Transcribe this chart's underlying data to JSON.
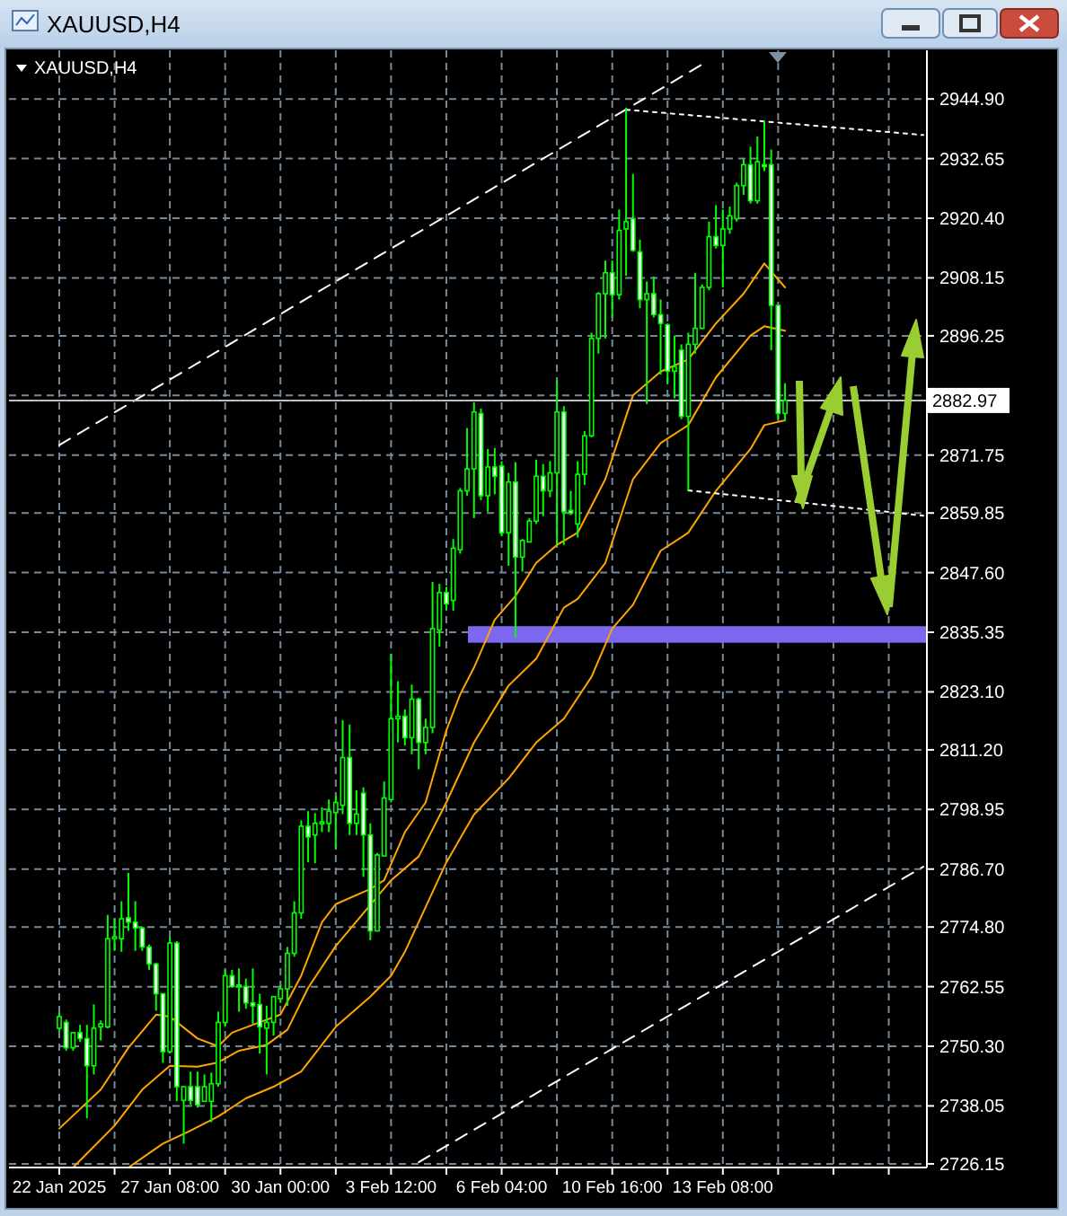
{
  "chart_data": {
    "type": "candlestick",
    "title": "XAUUSD,H4",
    "subtitle": "XAUUSD,H4",
    "color": "#00ff00",
    "categories": [
      "22 Jan 2025",
      null,
      null,
      null,
      null,
      null,
      null,
      null,
      null,
      null,
      null,
      null,
      null,
      null,
      null,
      null,
      "27 Jan 08:00",
      null,
      null,
      null,
      null,
      null,
      null,
      null,
      null,
      null,
      null,
      null,
      null,
      null,
      null,
      null,
      "30 Jan 00:00",
      null,
      null,
      null,
      null,
      null,
      null,
      null,
      null,
      null,
      null,
      null,
      null,
      null,
      null,
      null,
      "3 Feb 12:00",
      null,
      null,
      null,
      null,
      null,
      null,
      null,
      null,
      null,
      null,
      null,
      null,
      null,
      null,
      null,
      "6 Feb 04:00",
      null,
      null,
      null,
      null,
      null,
      null,
      null,
      null,
      null,
      null,
      null,
      null,
      null,
      null,
      null,
      "10 Feb 16:00",
      null,
      null,
      null,
      null,
      null,
      null,
      null,
      null,
      null,
      null,
      null,
      null,
      null,
      null,
      null,
      "13 Feb 08:00",
      null,
      null,
      null,
      null,
      null,
      null,
      null,
      null,
      null,
      null,
      null,
      null,
      null,
      null,
      null,
      null,
      null,
      null,
      null,
      null,
      null,
      null,
      null,
      null,
      null,
      null,
      null,
      null,
      null
    ],
    "ohlc": [
      [
        2754.0,
        2757.2,
        2753.5,
        2756.4
      ],
      [
        2755.2,
        2755.8,
        2749.4,
        2750.0
      ],
      [
        2750.0,
        2753.1,
        2749.4,
        2753.1
      ],
      [
        2753.1,
        2754.7,
        2751.2,
        2751.9
      ],
      [
        2751.9,
        2754.7,
        2735.5,
        2746.3
      ],
      [
        2746.3,
        2758.9,
        2744.5,
        2754.0
      ],
      [
        2754.3,
        2755.6,
        2751.5,
        2754.9
      ],
      [
        2754.3,
        2777.3,
        2754.0,
        2772.4
      ],
      [
        2772.4,
        2776.5,
        2769.9,
        2772.8
      ],
      [
        2772.4,
        2780.1,
        2769.7,
        2776.5
      ],
      [
        2776.7,
        2785.9,
        2774.0,
        2775.8
      ],
      [
        2775.8,
        2780.1,
        2769.9,
        2774.6
      ],
      [
        2774.6,
        2774.9,
        2769.9,
        2770.7
      ],
      [
        2770.7,
        2771.2,
        2766.0,
        2767.2
      ],
      [
        2767.2,
        2767.5,
        2757.6,
        2761.1
      ],
      [
        2761.1,
        2761.1,
        2746.9,
        2749.2
      ],
      [
        2749.2,
        2772.8,
        2748.8,
        2771.5
      ],
      [
        2771.5,
        2771.9,
        2739.0,
        2742.0
      ],
      [
        2739.2,
        2742.0,
        2730.3,
        2742.0
      ],
      [
        2742.0,
        2745.1,
        2738.3,
        2739.2
      ],
      [
        2742.0,
        2745.1,
        2737.7,
        2738.3
      ],
      [
        2739.0,
        2744.5,
        2739.0,
        2742.0
      ],
      [
        2739.0,
        2744.9,
        2734.7,
        2742.6
      ],
      [
        2742.6,
        2757.4,
        2742.0,
        2755.2
      ],
      [
        2755.2,
        2766.0,
        2754.3,
        2764.8
      ],
      [
        2764.8,
        2766.0,
        2762.3,
        2762.6
      ],
      [
        2762.6,
        2766.3,
        2757.4,
        2762.9
      ],
      [
        2762.6,
        2764.2,
        2758.0,
        2759.2
      ],
      [
        2759.2,
        2766.3,
        2754.9,
        2758.6
      ],
      [
        2758.9,
        2761.1,
        2748.8,
        2754.3
      ],
      [
        2754.0,
        2758.6,
        2744.5,
        2755.2
      ],
      [
        2755.2,
        2760.5,
        2752.5,
        2760.5
      ],
      [
        2760.1,
        2762.9,
        2759.2,
        2762.1
      ],
      [
        2762.1,
        2770.7,
        2758.6,
        2769.4
      ],
      [
        2769.4,
        2780.1,
        2768.7,
        2777.7
      ],
      [
        2777.7,
        2796.7,
        2776.5,
        2795.5
      ],
      [
        2795.5,
        2798.6,
        2788.1,
        2793.3
      ],
      [
        2793.7,
        2798.2,
        2787.9,
        2796.1
      ],
      [
        2796.0,
        2799.4,
        2794.3,
        2796.4
      ],
      [
        2796.1,
        2801.0,
        2794.3,
        2798.6
      ],
      [
        2798.3,
        2801.7,
        2790.8,
        2800.4
      ],
      [
        2799.8,
        2817.3,
        2798.0,
        2809.6
      ],
      [
        2809.6,
        2816.4,
        2793.7,
        2796.1
      ],
      [
        2796.1,
        2802.9,
        2793.7,
        2798.0
      ],
      [
        2802.3,
        2803.5,
        2785.1,
        2793.7
      ],
      [
        2793.7,
        2796.1,
        2772.1,
        2774.0
      ],
      [
        2774.0,
        2790.0,
        2774.0,
        2789.6
      ],
      [
        2789.4,
        2804.7,
        2789.4,
        2801.3
      ],
      [
        2801.0,
        2830.9,
        2800.4,
        2817.6
      ],
      [
        2817.6,
        2825.3,
        2812.7,
        2818.1
      ],
      [
        2818.1,
        2819.5,
        2812.1,
        2813.7
      ],
      [
        2813.7,
        2824.6,
        2810.3,
        2821.6
      ],
      [
        2821.6,
        2821.9,
        2807.2,
        2812.7
      ],
      [
        2812.7,
        2817.6,
        2810.3,
        2815.8
      ],
      [
        2815.8,
        2845.7,
        2814.6,
        2836.1
      ],
      [
        2835.8,
        2845.3,
        2832.4,
        2843.5
      ],
      [
        2843.5,
        2844.7,
        2840.0,
        2841.2
      ],
      [
        2841.9,
        2854.5,
        2839.8,
        2852.6
      ],
      [
        2852.3,
        2865.0,
        2851.5,
        2864.4
      ],
      [
        2864.4,
        2877.3,
        2863.4,
        2868.9
      ],
      [
        2868.9,
        2882.6,
        2858.8,
        2880.6
      ],
      [
        2880.3,
        2881.3,
        2862.5,
        2863.4
      ],
      [
        2863.4,
        2873.0,
        2860.1,
        2869.3
      ],
      [
        2869.3,
        2873.2,
        2863.7,
        2867.4
      ],
      [
        2869.5,
        2870.5,
        2855.1,
        2855.8
      ],
      [
        2855.8,
        2868.1,
        2849.0,
        2866.2
      ],
      [
        2866.2,
        2870.3,
        2834.2,
        2850.8
      ],
      [
        2850.8,
        2854.5,
        2847.8,
        2854.2
      ],
      [
        2853.9,
        2858.8,
        2853.9,
        2858.2
      ],
      [
        2858.2,
        2870.8,
        2857.6,
        2867.4
      ],
      [
        2867.4,
        2869.9,
        2859.2,
        2864.4
      ],
      [
        2864.4,
        2870.5,
        2863.1,
        2868.1
      ],
      [
        2868.1,
        2887.1,
        2853.3,
        2880.6
      ],
      [
        2880.6,
        2881.8,
        2853.3,
        2860.1
      ],
      [
        2860.4,
        2864.4,
        2859.4,
        2859.8
      ],
      [
        2857.6,
        2870.5,
        2854.8,
        2867.8
      ],
      [
        2867.8,
        2876.7,
        2865.6,
        2875.7
      ],
      [
        2875.7,
        2896.9,
        2875.4,
        2895.7
      ],
      [
        2895.7,
        2905.2,
        2892.6,
        2904.9
      ],
      [
        2904.9,
        2911.7,
        2895.7,
        2909.2
      ],
      [
        2909.2,
        2911.7,
        2900.0,
        2904.7
      ],
      [
        2904.7,
        2922.2,
        2903.7,
        2917.9
      ],
      [
        2918.2,
        2943.1,
        2908.6,
        2919.7
      ],
      [
        2920.3,
        2929.5,
        2913.5,
        2913.8
      ],
      [
        2913.5,
        2916.0,
        2901.9,
        2903.7
      ],
      [
        2903.7,
        2907.4,
        2882.2,
        2904.9
      ],
      [
        2904.9,
        2908.4,
        2900.0,
        2900.6
      ],
      [
        2900.6,
        2903.7,
        2888.3,
        2898.8
      ],
      [
        2898.5,
        2898.8,
        2886.5,
        2889.0
      ],
      [
        2889.0,
        2896.3,
        2883.4,
        2889.9
      ],
      [
        2893.3,
        2894.5,
        2879.1,
        2879.7
      ],
      [
        2879.7,
        2896.9,
        2864.4,
        2894.5
      ],
      [
        2894.5,
        2909.2,
        2892.6,
        2897.8
      ],
      [
        2897.8,
        2906.8,
        2897.6,
        2906.2
      ],
      [
        2906.2,
        2919.7,
        2905.6,
        2916.6
      ],
      [
        2916.6,
        2923.1,
        2914.2,
        2914.8
      ],
      [
        2914.8,
        2922.2,
        2906.2,
        2918.2
      ],
      [
        2918.2,
        2922.8,
        2917.2,
        2920.9
      ],
      [
        2920.3,
        2927.7,
        2919.7,
        2927.1
      ],
      [
        2927.1,
        2932.6,
        2925.2,
        2931.4
      ],
      [
        2931.4,
        2935.1,
        2923.4,
        2924.0
      ],
      [
        2924.0,
        2937.2,
        2923.4,
        2932.0
      ],
      [
        2931.4,
        2940.4,
        2930.1,
        2931.0
      ],
      [
        2931.4,
        2934.5,
        2893.3,
        2902.5
      ],
      [
        2902.5,
        2902.5,
        2879.1,
        2880.3
      ],
      [
        2880.3,
        2886.5,
        2878.7,
        2883.0
      ],
      null,
      null,
      null,
      null,
      null,
      null,
      null,
      null,
      null,
      null,
      null,
      null,
      null,
      null,
      null,
      null,
      null,
      null,
      null,
      null
    ],
    "series": [
      {
        "type": "line",
        "color": "#ffa500",
        "line_style": "solid",
        "values": [
          2733.4,
          null,
          null,
          null,
          null,
          null,
          2741.4,
          null,
          null,
          null,
          2750.0,
          null,
          null,
          null,
          2756.8,
          null,
          2756.4,
          null,
          null,
          null,
          2751.9,
          null,
          null,
          2750.3,
          null,
          2753.1,
          null,
          null,
          2754.7,
          null,
          null,
          null,
          2756.8,
          null,
          null,
          2764.8,
          null,
          null,
          2775.8,
          null,
          2779.5,
          null,
          null,
          null,
          null,
          2782.6,
          null,
          2784.4,
          null,
          null,
          2794.3,
          null,
          null,
          2800.4,
          null,
          null,
          2815.2,
          null,
          2822.6,
          null,
          2828.1,
          null,
          null,
          2837.9,
          null,
          null,
          2842.8,
          null,
          null,
          2849.6,
          null,
          null,
          2853.3,
          null,
          null,
          2855.8,
          null,
          null,
          null,
          2866.8,
          null,
          null,
          null,
          2884.0,
          null,
          null,
          null,
          2888.9,
          null,
          null,
          null,
          2891.4,
          null,
          null,
          null,
          2898.8,
          null,
          null,
          null,
          2904.9,
          null,
          null,
          2911.1,
          null,
          null,
          2906.2,
          null,
          null,
          null,
          null,
          null,
          null,
          null,
          null,
          null,
          null,
          null,
          null,
          null,
          null,
          null,
          null,
          null,
          null,
          null,
          null
        ]
      },
      {
        "type": "line",
        "color": "#ffa500",
        "line_style": "solid",
        "values": [
          null,
          null,
          2725.4,
          null,
          null,
          null,
          null,
          null,
          2734.0,
          null,
          null,
          null,
          2741.4,
          null,
          null,
          null,
          2746.3,
          null,
          null,
          null,
          2746.1,
          null,
          null,
          2747.0,
          null,
          null,
          2749.4,
          null,
          null,
          null,
          2750.6,
          null,
          null,
          2753.7,
          null,
          null,
          2762.3,
          null,
          null,
          null,
          2770.9,
          null,
          null,
          null,
          null,
          null,
          null,
          null,
          2784.4,
          null,
          null,
          null,
          2789.3,
          null,
          null,
          null,
          2800.4,
          null,
          null,
          null,
          2812.7,
          null,
          null,
          null,
          null,
          2824.4,
          null,
          null,
          null,
          2829.9,
          null,
          null,
          null,
          2840.4,
          null,
          2842.2,
          null,
          null,
          null,
          2849.6,
          null,
          null,
          null,
          2866.8,
          null,
          null,
          null,
          2874.2,
          null,
          null,
          null,
          2877.9,
          null,
          null,
          null,
          2887.7,
          null,
          null,
          null,
          null,
          2896.3,
          null,
          2898.2,
          null,
          null,
          2897.3,
          null,
          null,
          null,
          null,
          null,
          null,
          null,
          null,
          null,
          null,
          null,
          null,
          null,
          null,
          null,
          null,
          null,
          null,
          null,
          null
        ]
      },
      {
        "type": "line",
        "color": "#ffa500",
        "line_style": "solid",
        "values": [
          null,
          null,
          null,
          null,
          null,
          null,
          null,
          null,
          null,
          null,
          2725.4,
          null,
          null,
          null,
          null,
          2730.3,
          null,
          null,
          null,
          2733.0,
          null,
          null,
          null,
          2735.9,
          null,
          null,
          null,
          2739.6,
          null,
          null,
          null,
          2742.0,
          null,
          null,
          null,
          2745.1,
          null,
          null,
          null,
          null,
          2754.3,
          null,
          null,
          null,
          null,
          2760.5,
          null,
          null,
          2764.8,
          null,
          2769.7,
          null,
          null,
          null,
          null,
          null,
          2788.1,
          null,
          null,
          null,
          2797.9,
          null,
          null,
          null,
          null,
          2805.3,
          null,
          null,
          null,
          2812.7,
          null,
          null,
          null,
          2817.6,
          null,
          null,
          null,
          2826.2,
          null,
          null,
          2836.1,
          null,
          null,
          2841.0,
          null,
          null,
          null,
          2852.1,
          null,
          null,
          null,
          2855.8,
          null,
          null,
          null,
          2864.4,
          null,
          null,
          null,
          null,
          2873.0,
          null,
          2877.9,
          null,
          null,
          2878.9,
          null,
          null,
          null,
          null,
          null,
          null,
          null,
          null,
          null,
          null,
          null,
          null,
          null,
          null,
          null,
          null,
          null,
          null,
          null,
          null
        ]
      },
      {
        "type": "line",
        "color": "#ffffff",
        "line_style": "dashed",
        "values": [
          2873.8,
          null,
          null,
          null,
          null,
          null,
          null,
          null,
          null,
          null,
          null,
          null,
          null,
          null,
          null,
          null,
          null,
          null,
          null,
          null,
          null,
          null,
          null,
          null,
          null,
          null,
          null,
          null,
          null,
          null,
          null,
          null,
          null,
          null,
          null,
          null,
          null,
          null,
          null,
          null,
          null,
          null,
          null,
          null,
          null,
          null,
          null,
          null,
          null,
          null,
          null,
          null,
          null,
          null,
          null,
          null,
          null,
          null,
          null,
          null,
          null,
          null,
          null,
          null,
          null,
          null,
          null,
          null,
          null,
          null,
          null,
          null,
          null,
          null,
          null,
          null,
          null,
          null,
          null,
          null,
          null,
          null,
          null,
          null,
          null,
          null,
          null,
          null,
          null,
          null,
          null,
          null,
          null,
          2952.0,
          null,
          null,
          null,
          null,
          null,
          null,
          null,
          null,
          null,
          null,
          null,
          null,
          null,
          null,
          null,
          null,
          null,
          null,
          null,
          null,
          null,
          null,
          null,
          null,
          null,
          null,
          null,
          null,
          null,
          null,
          null,
          null
        ]
      },
      {
        "type": "line",
        "color": "#ffffff",
        "line_style": "dashed",
        "values": [
          null,
          null,
          null,
          null,
          null,
          null,
          null,
          null,
          null,
          null,
          null,
          null,
          null,
          null,
          null,
          null,
          null,
          null,
          null,
          null,
          null,
          null,
          null,
          null,
          null,
          null,
          null,
          null,
          null,
          null,
          null,
          null,
          null,
          null,
          null,
          null,
          null,
          null,
          null,
          null,
          null,
          null,
          null,
          null,
          null,
          null,
          null,
          null,
          null,
          null,
          null,
          null,
          2726.5,
          null,
          null,
          null,
          null,
          null,
          null,
          null,
          null,
          null,
          null,
          null,
          null,
          null,
          null,
          null,
          null,
          null,
          null,
          null,
          null,
          null,
          null,
          null,
          null,
          null,
          null,
          null,
          null,
          null,
          null,
          null,
          null,
          null,
          null,
          null,
          null,
          null,
          null,
          null,
          null,
          null,
          null,
          null,
          null,
          null,
          null,
          null,
          null,
          null,
          null,
          null,
          null,
          null,
          null,
          null,
          null,
          null,
          null,
          null,
          null,
          null,
          null,
          null,
          null,
          null,
          null,
          null,
          null,
          null,
          null,
          null,
          null,
          2787.2
        ]
      },
      {
        "type": "line",
        "color": "#ffffff",
        "line_style": "dotted",
        "values": [
          null,
          null,
          null,
          null,
          null,
          null,
          null,
          null,
          null,
          null,
          null,
          null,
          null,
          null,
          null,
          null,
          null,
          null,
          null,
          null,
          null,
          null,
          null,
          null,
          null,
          null,
          null,
          null,
          null,
          null,
          null,
          null,
          null,
          null,
          null,
          null,
          null,
          null,
          null,
          null,
          null,
          null,
          null,
          null,
          null,
          null,
          null,
          null,
          null,
          null,
          null,
          null,
          null,
          null,
          null,
          null,
          null,
          null,
          null,
          null,
          null,
          null,
          null,
          null,
          null,
          null,
          null,
          null,
          null,
          null,
          null,
          null,
          null,
          null,
          null,
          null,
          null,
          null,
          null,
          null,
          null,
          null,
          2942.7,
          null,
          null,
          null,
          null,
          null,
          null,
          null,
          null,
          null,
          null,
          null,
          null,
          null,
          null,
          null,
          null,
          null,
          null,
          null,
          null,
          null,
          null,
          null,
          null,
          null,
          null,
          null,
          null,
          null,
          null,
          null,
          null,
          null,
          null,
          null,
          null,
          null,
          null,
          null,
          null,
          null,
          null,
          2937.5
        ]
      },
      {
        "type": "line",
        "color": "#ffffff",
        "line_style": "dotted",
        "values": [
          null,
          null,
          null,
          null,
          null,
          null,
          null,
          null,
          null,
          null,
          null,
          null,
          null,
          null,
          null,
          null,
          null,
          null,
          null,
          null,
          null,
          null,
          null,
          null,
          null,
          null,
          null,
          null,
          null,
          null,
          null,
          null,
          null,
          null,
          null,
          null,
          null,
          null,
          null,
          null,
          null,
          null,
          null,
          null,
          null,
          null,
          null,
          null,
          null,
          null,
          null,
          null,
          null,
          null,
          null,
          null,
          null,
          null,
          null,
          null,
          null,
          null,
          null,
          null,
          null,
          null,
          null,
          null,
          null,
          null,
          null,
          null,
          null,
          null,
          null,
          null,
          null,
          null,
          null,
          null,
          null,
          null,
          null,
          null,
          null,
          null,
          null,
          null,
          null,
          null,
          null,
          2864.5,
          null,
          null,
          null,
          null,
          null,
          null,
          null,
          null,
          null,
          null,
          null,
          null,
          null,
          null,
          null,
          null,
          null,
          null,
          null,
          null,
          null,
          null,
          null,
          null,
          null,
          null,
          null,
          null,
          null,
          null,
          null,
          null,
          null,
          2859.3
        ]
      }
    ],
    "ylim": [
      2725.4,
      2954.9
    ],
    "yticks": [
      {
        "value": 2726.15,
        "label": "2726.15"
      },
      {
        "value": 2738.05,
        "label": "2738.05"
      },
      {
        "value": 2750.3,
        "label": "2750.30"
      },
      {
        "value": 2762.55,
        "label": "2762.55"
      },
      {
        "value": 2774.8,
        "label": "2774.80"
      },
      {
        "value": 2786.7,
        "label": "2786.70"
      },
      {
        "value": 2798.95,
        "label": "2798.95"
      },
      {
        "value": 2811.2,
        "label": "2811.20"
      },
      {
        "value": 2823.1,
        "label": "2823.10"
      },
      {
        "value": 2835.35,
        "label": "2835.35"
      },
      {
        "value": 2847.6,
        "label": "2847.60"
      },
      {
        "value": 2859.85,
        "label": "2859.85"
      },
      {
        "value": 2871.75,
        "label": "2871.75"
      },
      {
        "value": 2884.0,
        "label": null
      },
      {
        "value": 2896.25,
        "label": "2896.25"
      },
      {
        "value": 2908.15,
        "label": "2908.15"
      },
      {
        "value": 2920.4,
        "label": "2920.40"
      },
      {
        "value": 2932.65,
        "label": "2932.65"
      },
      {
        "value": 2944.9,
        "label": "2944.90"
      }
    ],
    "grid": true,
    "ref_lines": [
      {
        "axis": "y",
        "value": 2882.97,
        "label": "2882.97",
        "color": "#c0c0c0"
      }
    ],
    "bands": [
      {
        "axis": "y",
        "from": 2833.2,
        "to": 2836.6,
        "color": "#7b68ee"
      }
    ]
  }
}
